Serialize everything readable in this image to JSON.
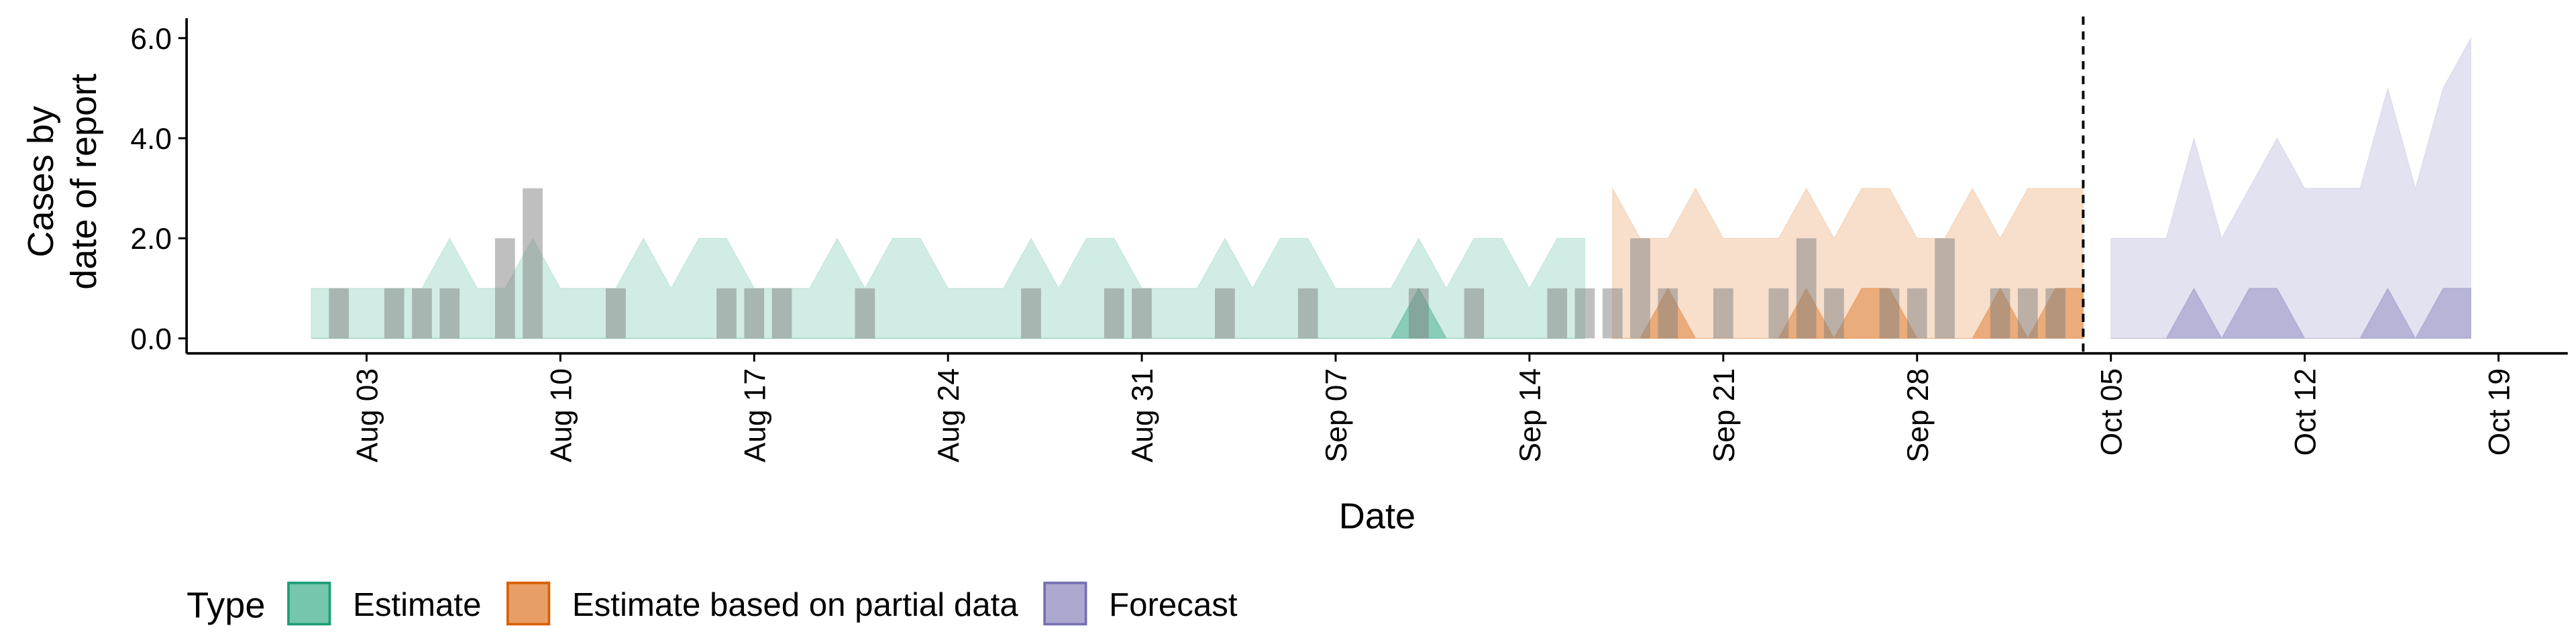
{
  "chart_data": {
    "type": "ribbon",
    "x_label": "Date",
    "y_label": [
      "Cases by",
      "date of report"
    ],
    "legend_title": "Type",
    "legend": "bottom-left",
    "categories": [
      null,
      null,
      "Aug 03",
      null,
      null,
      null,
      null,
      null,
      null,
      "Aug 10",
      null,
      null,
      null,
      null,
      null,
      null,
      "Aug 17",
      null,
      null,
      null,
      null,
      null,
      null,
      "Aug 24",
      null,
      null,
      null,
      null,
      null,
      null,
      "Aug 31",
      null,
      null,
      null,
      null,
      null,
      null,
      "Sep 07",
      null,
      null,
      null,
      null,
      null,
      null,
      "Sep 14",
      null,
      null,
      null,
      null,
      null,
      null,
      "Sep 21",
      null,
      null,
      null,
      null,
      null,
      null,
      "Sep 28",
      null,
      null,
      null,
      null,
      null,
      null,
      "Oct 05",
      null,
      null,
      null,
      null,
      null,
      null,
      "Oct 12",
      null,
      null,
      null,
      null,
      null,
      null,
      "Oct 19"
    ],
    "ylim": [
      -0.3,
      6.3
    ],
    "yticks": [
      {
        "value": 0,
        "label": "0.0"
      },
      {
        "value": 2,
        "label": "2.0"
      },
      {
        "value": 4,
        "label": "4.0"
      },
      {
        "value": 6,
        "label": "6.0"
      }
    ],
    "series": [
      {
        "name": "Estimate",
        "color": "#1b9e77",
        "outer": [
          1,
          1,
          1,
          1,
          1,
          2,
          1,
          1,
          2,
          1,
          1,
          1,
          2,
          1,
          2,
          2,
          1,
          1,
          1,
          2,
          1,
          2,
          2,
          1,
          1,
          1,
          2,
          1,
          2,
          2,
          1,
          1,
          1,
          2,
          1,
          2,
          2,
          1,
          1,
          1,
          2,
          1,
          2,
          2,
          1,
          2,
          2,
          null,
          null,
          null,
          null,
          null,
          null,
          null,
          null,
          null,
          null,
          null,
          null,
          null,
          null,
          null,
          null,
          null,
          null,
          null,
          null,
          null,
          null,
          null,
          null,
          null,
          null,
          null,
          null,
          null,
          null,
          null,
          null,
          null
        ],
        "inner": [
          0,
          0,
          0,
          0,
          0,
          0,
          0,
          0,
          0,
          0,
          0,
          0,
          0,
          0,
          0,
          0,
          0,
          0,
          0,
          0,
          0,
          0,
          0,
          0,
          0,
          0,
          0,
          0,
          0,
          0,
          0,
          0,
          0,
          0,
          0,
          0,
          0,
          0,
          0,
          0,
          1,
          0,
          0,
          0,
          0,
          0,
          0,
          null,
          null,
          null,
          null,
          null,
          null,
          null,
          null,
          null,
          null,
          null,
          null,
          null,
          null,
          null,
          null,
          null,
          null,
          null,
          null,
          null,
          null,
          null,
          null,
          null,
          null,
          null,
          null,
          null,
          null,
          null,
          null,
          null
        ]
      },
      {
        "name": "Estimate based on partial data",
        "color": "#d95f02",
        "outer": [
          null,
          null,
          null,
          null,
          null,
          null,
          null,
          null,
          null,
          null,
          null,
          null,
          null,
          null,
          null,
          null,
          null,
          null,
          null,
          null,
          null,
          null,
          null,
          null,
          null,
          null,
          null,
          null,
          null,
          null,
          null,
          null,
          null,
          null,
          null,
          null,
          null,
          null,
          null,
          null,
          null,
          null,
          null,
          null,
          null,
          null,
          null,
          3,
          2,
          2,
          3,
          2,
          2,
          2,
          3,
          2,
          3,
          3,
          2,
          2,
          3,
          2,
          3,
          3,
          3,
          null,
          null,
          null,
          null,
          null,
          null,
          null,
          null,
          null,
          null,
          null,
          null,
          null,
          null,
          null
        ],
        "inner": [
          null,
          null,
          null,
          null,
          null,
          null,
          null,
          null,
          null,
          null,
          null,
          null,
          null,
          null,
          null,
          null,
          null,
          null,
          null,
          null,
          null,
          null,
          null,
          null,
          null,
          null,
          null,
          null,
          null,
          null,
          null,
          null,
          null,
          null,
          null,
          null,
          null,
          null,
          null,
          null,
          null,
          null,
          null,
          null,
          null,
          null,
          null,
          0,
          0,
          1,
          0,
          0,
          0,
          0,
          1,
          0,
          1,
          1,
          0,
          0,
          0,
          1,
          0,
          1,
          1,
          null,
          null,
          null,
          null,
          null,
          null,
          null,
          null,
          null,
          null,
          null,
          null,
          null,
          null,
          null
        ]
      },
      {
        "name": "Forecast",
        "color": "#7570b3",
        "outer": [
          null,
          null,
          null,
          null,
          null,
          null,
          null,
          null,
          null,
          null,
          null,
          null,
          null,
          null,
          null,
          null,
          null,
          null,
          null,
          null,
          null,
          null,
          null,
          null,
          null,
          null,
          null,
          null,
          null,
          null,
          null,
          null,
          null,
          null,
          null,
          null,
          null,
          null,
          null,
          null,
          null,
          null,
          null,
          null,
          null,
          null,
          null,
          null,
          null,
          null,
          null,
          null,
          null,
          null,
          null,
          null,
          null,
          null,
          null,
          null,
          null,
          null,
          null,
          null,
          null,
          2,
          2,
          2,
          4,
          2,
          3,
          4,
          3,
          3,
          3,
          5,
          3,
          5,
          6,
          null
        ],
        "inner": [
          null,
          null,
          null,
          null,
          null,
          null,
          null,
          null,
          null,
          null,
          null,
          null,
          null,
          null,
          null,
          null,
          null,
          null,
          null,
          null,
          null,
          null,
          null,
          null,
          null,
          null,
          null,
          null,
          null,
          null,
          null,
          null,
          null,
          null,
          null,
          null,
          null,
          null,
          null,
          null,
          null,
          null,
          null,
          null,
          null,
          null,
          null,
          null,
          null,
          null,
          null,
          null,
          null,
          null,
          null,
          null,
          null,
          null,
          null,
          null,
          null,
          null,
          null,
          null,
          null,
          0,
          0,
          0,
          1,
          0,
          1,
          1,
          0,
          0,
          0,
          1,
          0,
          1,
          1,
          null
        ]
      }
    ],
    "bars": {
      "color": "#808080",
      "values": [
        0,
        1,
        0,
        1,
        1,
        1,
        0,
        2,
        3,
        0,
        0,
        1,
        0,
        0,
        0,
        1,
        1,
        1,
        0,
        0,
        1,
        0,
        0,
        0,
        0,
        0,
        1,
        0,
        0,
        1,
        1,
        0,
        0,
        1,
        0,
        0,
        1,
        0,
        0,
        0,
        1,
        0,
        1,
        0,
        0,
        1,
        1,
        1,
        2,
        1,
        0,
        1,
        0,
        1,
        2,
        1,
        0,
        1,
        1,
        2,
        0,
        1,
        1,
        1,
        0,
        null,
        null,
        null,
        null,
        null,
        null,
        null,
        null,
        null,
        null,
        null,
        null,
        null,
        null,
        null
      ]
    }
  }
}
